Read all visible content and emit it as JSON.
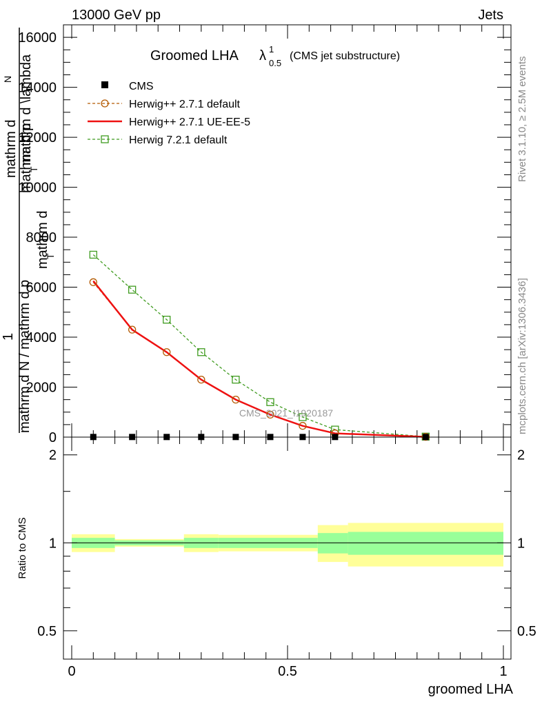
{
  "header": {
    "energy_label": "13000 GeV pp",
    "category_label": "Jets"
  },
  "side_labels": {
    "rivet": "Rivet 3.1.10, ≥ 2.5M events",
    "mcplots": "mcplots.cern.ch [arXiv:1306.3436]"
  },
  "watermark": "CMS_2021_I1920187",
  "chart_data": [
    {
      "type": "line",
      "title_main": "Groomed LHA",
      "title_lambda": "λ",
      "title_sup": "1",
      "title_sub": "0.5",
      "title_note": "(CMS jet substructure)",
      "ylabel_numerator_1": "mathrm d",
      "ylabel_numerator_2": "N",
      "ylabel_numerator_3": "mathrm d p",
      "ylabel_numerator_4": "T",
      "ylabel_numerator_5": "mathrm d",
      "ylabel_numerator_6": "mathrm d \\lambda",
      "ylabel_one": "1",
      "ylabel_denominator_1": "mathrm d N / mathrm d p",
      "ylabel_denominator_2": "T",
      "xlim": [
        0,
        1
      ],
      "ylim": [
        0,
        16500
      ],
      "y_ticks": [
        0,
        2000,
        4000,
        6000,
        8000,
        10000,
        12000,
        14000,
        16000
      ],
      "y_tick_labels": [
        "0",
        "2000",
        "4000",
        "6000",
        "8000",
        "10000",
        "12000",
        "14000",
        "16000"
      ],
      "legend_position": "top-left",
      "series": [
        {
          "name": "CMS",
          "style": "marker",
          "color": "#000000",
          "x": [
            0.05,
            0.14,
            0.22,
            0.3,
            0.38,
            0.46,
            0.535,
            0.61,
            0.82
          ],
          "values": [
            5,
            5,
            5,
            5,
            5,
            5,
            5,
            5,
            5
          ]
        },
        {
          "name": "Herwig++ 2.7.1 default",
          "style": "circle-dashed",
          "color": "#b35900",
          "x": [
            0.05,
            0.14,
            0.22,
            0.3,
            0.38,
            0.46,
            0.535,
            0.61,
            0.82
          ],
          "values": [
            6200,
            4300,
            3400,
            2300,
            1500,
            900,
            450,
            150,
            10
          ]
        },
        {
          "name": "Herwig++ 2.7.1 UE-EE-5",
          "style": "solid",
          "color": "#ee1111",
          "x": [
            0.05,
            0.14,
            0.22,
            0.3,
            0.38,
            0.46,
            0.535,
            0.61,
            0.82
          ],
          "values": [
            6250,
            4300,
            3400,
            2300,
            1500,
            900,
            450,
            150,
            10
          ]
        },
        {
          "name": "Herwig 7.2.1 default",
          "style": "square-dashed",
          "color": "#3f9b1f",
          "x": [
            0.05,
            0.14,
            0.22,
            0.3,
            0.38,
            0.46,
            0.535,
            0.61,
            0.82
          ],
          "values": [
            7300,
            5900,
            4700,
            3400,
            2300,
            1400,
            800,
            300,
            20
          ]
        }
      ]
    },
    {
      "type": "band",
      "ylabel": "Ratio to CMS",
      "xlabel": "groomed LHA",
      "xlim": [
        0,
        1
      ],
      "ylim": [
        0.4,
        2.3
      ],
      "y_scale": "log",
      "y_ticks": [
        0.5,
        1,
        2
      ],
      "y_tick_labels": [
        "0.5",
        "1",
        "2"
      ],
      "x_ticks": [
        0,
        0.5,
        1
      ],
      "x_tick_labels": [
        "0",
        "0.5",
        "1"
      ],
      "reference_line": 1,
      "bins": [
        {
          "x0": 0.0,
          "x1": 0.1,
          "inner": [
            0.96,
            1.04
          ],
          "outer": [
            0.93,
            1.07
          ]
        },
        {
          "x0": 0.1,
          "x1": 0.26,
          "inner": [
            0.98,
            1.02
          ],
          "outer": [
            0.97,
            1.03
          ]
        },
        {
          "x0": 0.26,
          "x1": 0.34,
          "inner": [
            0.96,
            1.04
          ],
          "outer": [
            0.93,
            1.07
          ]
        },
        {
          "x0": 0.34,
          "x1": 0.57,
          "inner": [
            0.96,
            1.04
          ],
          "outer": [
            0.935,
            1.065
          ]
        },
        {
          "x0": 0.57,
          "x1": 0.64,
          "inner": [
            0.92,
            1.08
          ],
          "outer": [
            0.86,
            1.15
          ]
        },
        {
          "x0": 0.64,
          "x1": 1.0,
          "inner": [
            0.91,
            1.09
          ],
          "outer": [
            0.83,
            1.17
          ]
        }
      ],
      "inner_color": "#99ff99",
      "outer_color": "#ffff99"
    }
  ]
}
